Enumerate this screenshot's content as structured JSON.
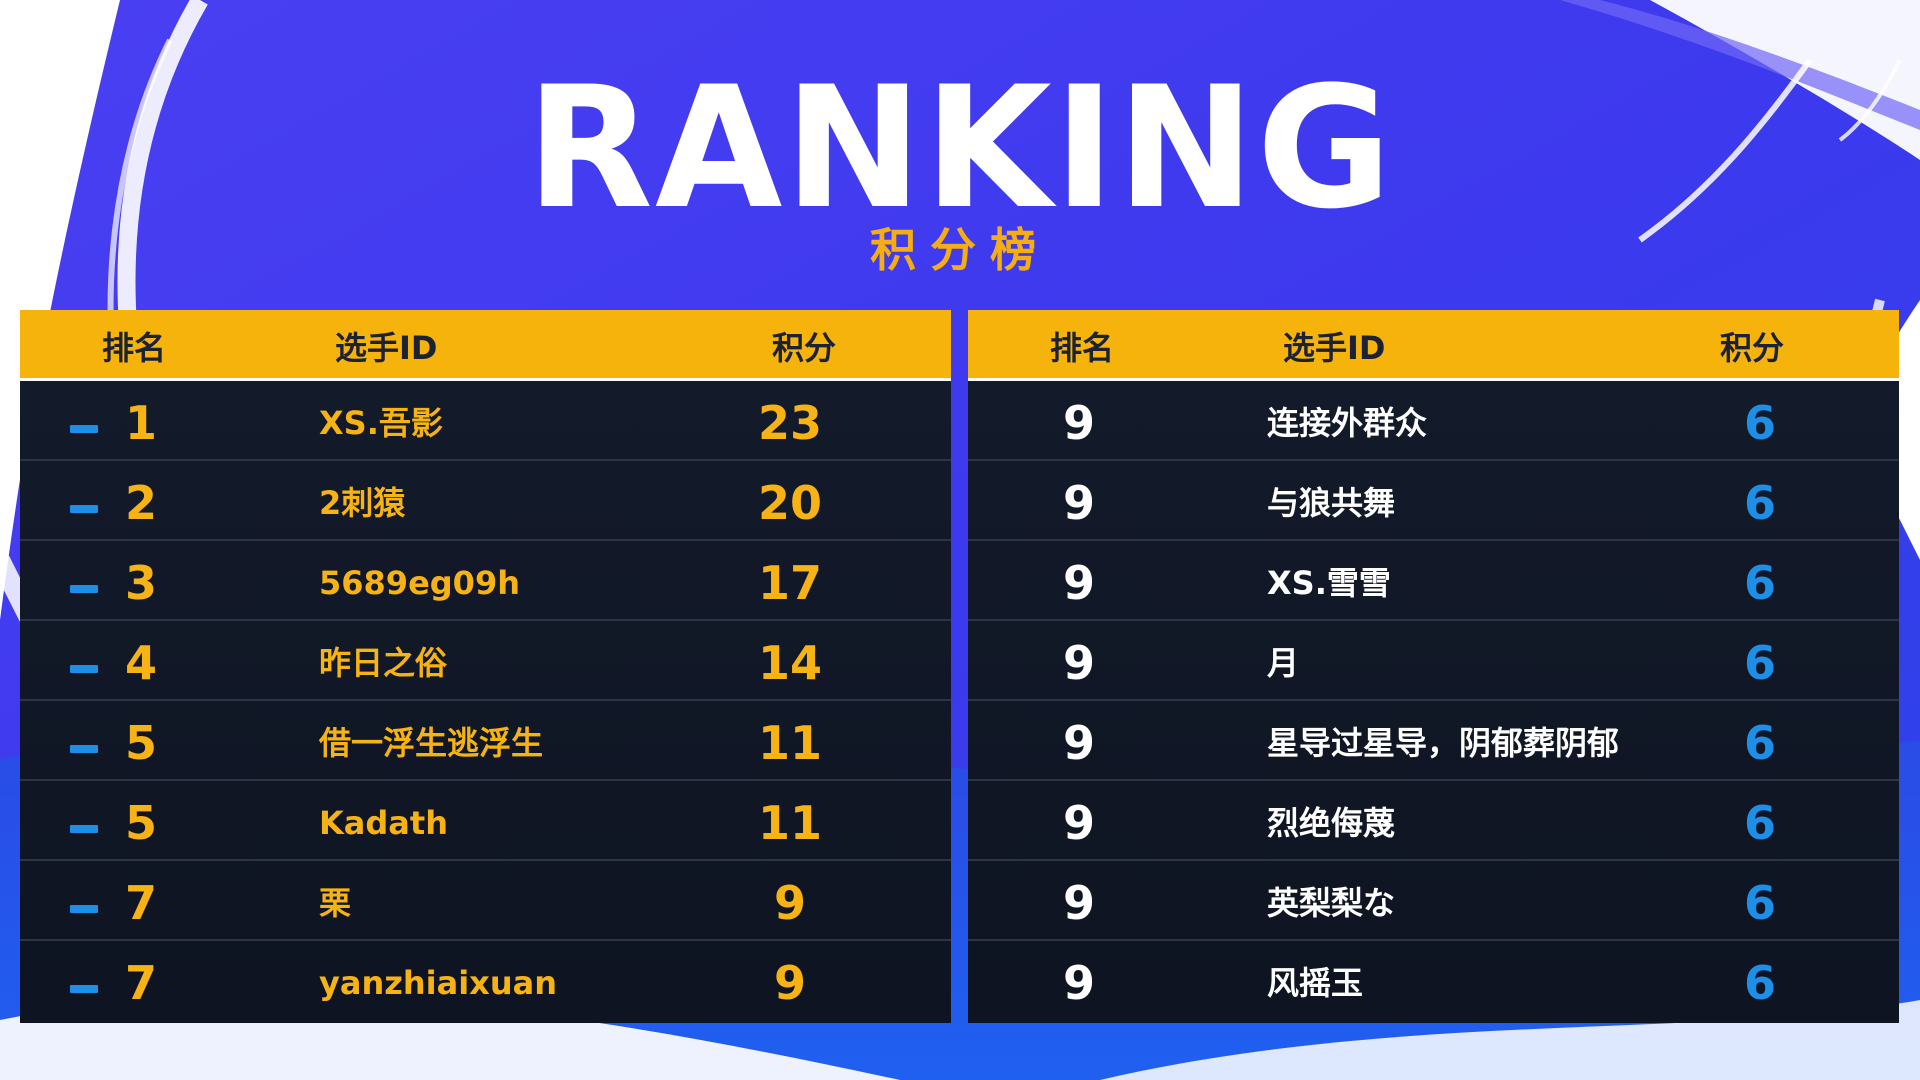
{
  "title": "RANKING",
  "subtitle": "积分榜",
  "colors": {
    "accent_yellow": "#f5b30b",
    "accent_blue": "#1d8fe6",
    "background_blue": "#3f3df0",
    "table_dark": "#131a2a"
  },
  "icons": {
    "trend": "dash-trend-icon"
  },
  "left_table": {
    "headers": {
      "rank": "排名",
      "player": "选手ID",
      "score": "积分"
    },
    "rows": [
      {
        "rank": "1",
        "player": "XS.吾影",
        "score": "23"
      },
      {
        "rank": "2",
        "player": "2刺猿",
        "score": "20"
      },
      {
        "rank": "3",
        "player": "5689eg09h",
        "score": "17"
      },
      {
        "rank": "4",
        "player": "昨日之俗",
        "score": "14"
      },
      {
        "rank": "5",
        "player": "借一浮生逃浮生",
        "score": "11"
      },
      {
        "rank": "5",
        "player": "Kadath",
        "score": "11"
      },
      {
        "rank": "7",
        "player": "栗",
        "score": "9"
      },
      {
        "rank": "7",
        "player": "yanzhiaixuan",
        "score": "9"
      }
    ]
  },
  "right_table": {
    "headers": {
      "rank": "排名",
      "player": "选手ID",
      "score": "积分"
    },
    "rows": [
      {
        "rank": "9",
        "player": "连接外群众",
        "score": "6"
      },
      {
        "rank": "9",
        "player": "与狼共舞",
        "score": "6"
      },
      {
        "rank": "9",
        "player": "XS.雪雪",
        "score": "6"
      },
      {
        "rank": "9",
        "player": "月",
        "score": "6"
      },
      {
        "rank": "9",
        "player": "星导过星导，阴郁葬阴郁",
        "score": "6"
      },
      {
        "rank": "9",
        "player": "烈绝侮蔑",
        "score": "6"
      },
      {
        "rank": "9",
        "player": "英梨梨な",
        "score": "6"
      },
      {
        "rank": "9",
        "player": "风摇玉",
        "score": "6"
      }
    ]
  }
}
